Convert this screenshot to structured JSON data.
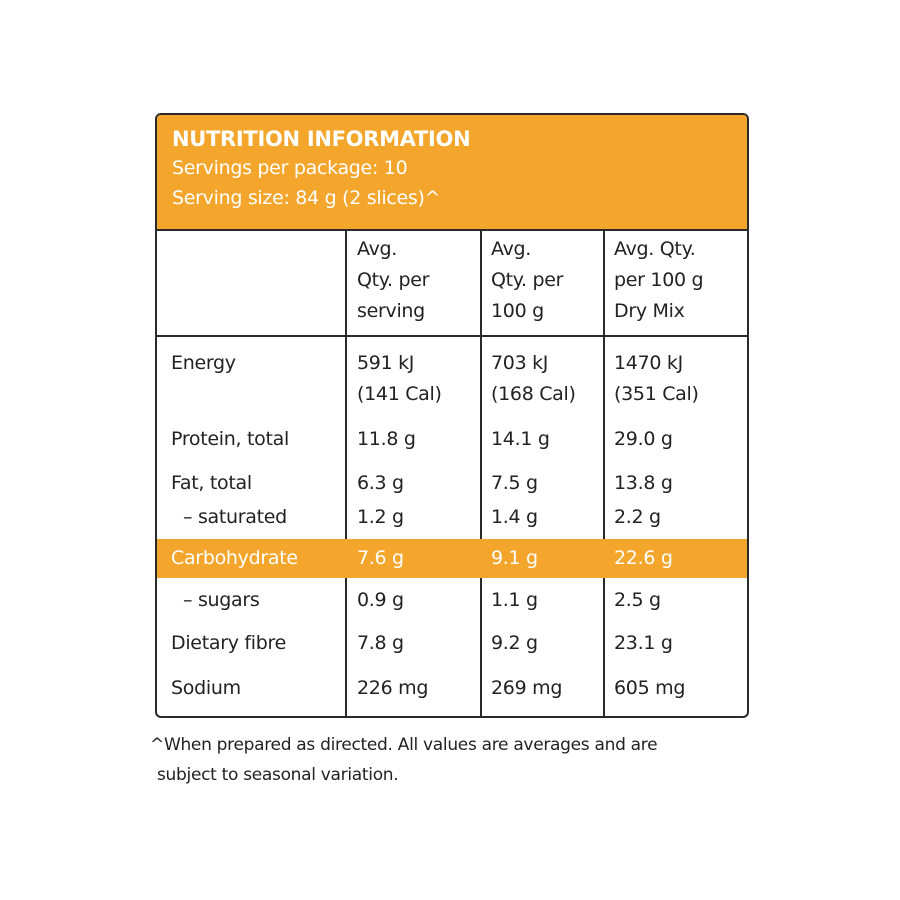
{
  "header": {
    "title": "NUTRITION INFORMATION",
    "servings": "Servings per package: 10",
    "serving_size": "Serving size: 84 g (2 slices)^"
  },
  "table": {
    "columns": [
      [
        "Avg.",
        "Qty. per",
        "serving"
      ],
      [
        "Avg.",
        "Qty. per",
        "100 g"
      ],
      [
        "Avg. Qty.",
        "per 100 g",
        "Dry Mix"
      ]
    ],
    "rows": [
      {
        "label": "Energy",
        "cells": [
          [
            "591 kJ",
            "(141 Cal)"
          ],
          [
            "703 kJ",
            "(168 Cal)"
          ],
          [
            "1470 kJ",
            "(351 Cal)"
          ]
        ]
      },
      {
        "label": "Protein, total",
        "cells": [
          "11.8 g",
          "14.1 g",
          "29.0 g"
        ]
      },
      {
        "label": "Fat, total",
        "cells": [
          "6.3 g",
          "7.5 g",
          "13.8 g"
        ]
      },
      {
        "label": "– saturated",
        "cells": [
          "1.2 g",
          "1.4 g",
          "2.2 g"
        ]
      },
      {
        "label": "Carbohydrate",
        "cells": [
          "7.6 g",
          "9.1 g",
          "22.6 g"
        ],
        "highlight": true
      },
      {
        "label": "– sugars",
        "cells": [
          "0.9 g",
          "1.1 g",
          "2.5 g"
        ]
      },
      {
        "label": "Dietary fibre",
        "cells": [
          "7.8 g",
          "9.2 g",
          "23.1 g"
        ]
      },
      {
        "label": "Sodium",
        "cells": [
          "226 mg",
          "269 mg",
          "605 mg"
        ]
      }
    ]
  },
  "footnote": [
    "^When prepared as directed. All values are averages and are",
    "subject to seasonal variation."
  ]
}
